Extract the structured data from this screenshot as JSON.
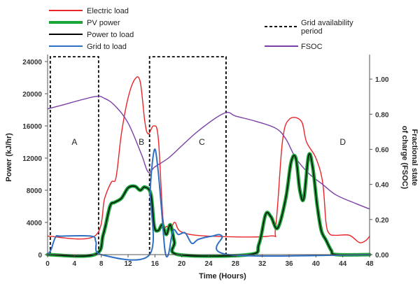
{
  "chart_data": {
    "type": "line",
    "xlabel": "Time (Hours)",
    "ylabel_left": "Power (kJ/hr)",
    "ylabel_right": "Fractional state of charge (FSOC)",
    "xlim": [
      0,
      48
    ],
    "ylim_left": [
      0,
      24000
    ],
    "ylim_right": [
      0,
      1.1
    ],
    "x_ticks": [
      0,
      4,
      8,
      12,
      16,
      20,
      24,
      28,
      32,
      36,
      40,
      44,
      48
    ],
    "y_left_ticks": [
      0,
      4000,
      8000,
      12000,
      16000,
      20000,
      24000
    ],
    "y_right_ticks": [
      "0.00",
      "0.20",
      "0.40",
      "0.60",
      "0.80",
      "1.00"
    ],
    "y_right_values": [
      0,
      0.2,
      0.4,
      0.6,
      0.8,
      1.0
    ],
    "grid": false,
    "legend": [
      {
        "label": "Electric load",
        "color": "#e8262a",
        "style": "solid"
      },
      {
        "label": "PV power",
        "color": "#1aa538",
        "style": "thick"
      },
      {
        "label": "Power to load",
        "color": "#000000",
        "style": "solid"
      },
      {
        "label": "Grid to load",
        "color": "#2e6fc4",
        "style": "solid"
      },
      {
        "label": "Grid availability period",
        "color": "#000000",
        "style": "dashed"
      },
      {
        "label": "FSOC",
        "color": "#7b3fa6",
        "style": "solid"
      }
    ],
    "region_labels": [
      {
        "text": "A",
        "x": 4,
        "y": 14000
      },
      {
        "text": "B",
        "x": 14,
        "y": 14000
      },
      {
        "text": "C",
        "x": 23,
        "y": 14000
      },
      {
        "text": "D",
        "x": 44,
        "y": 14000
      }
    ],
    "grid_availability_periods": [
      {
        "start": 0.4,
        "end": 7.6,
        "level": 24600
      },
      {
        "start": 15.2,
        "end": 26.6,
        "level": 24600
      }
    ],
    "series": [
      {
        "name": "Electric load",
        "axis": "left",
        "color": "#e8262a",
        "width": 1.4,
        "points": [
          [
            0,
            2300
          ],
          [
            7,
            2300
          ],
          [
            8.5,
            7000
          ],
          [
            9.5,
            9000
          ],
          [
            10.2,
            9600
          ],
          [
            11,
            15000
          ],
          [
            12,
            19500
          ],
          [
            13,
            21800
          ],
          [
            13.8,
            21500
          ],
          [
            14.5,
            16500
          ],
          [
            15,
            15000
          ],
          [
            15.8,
            16000
          ],
          [
            16.5,
            14500
          ],
          [
            17.2,
            4500
          ],
          [
            17.8,
            3500
          ],
          [
            18.5,
            3500
          ],
          [
            19,
            4000
          ],
          [
            20,
            2800
          ],
          [
            24,
            2300
          ],
          [
            33,
            2300
          ],
          [
            34,
            3500
          ],
          [
            35,
            14000
          ],
          [
            36,
            16800
          ],
          [
            37.8,
            16600
          ],
          [
            38.6,
            14000
          ],
          [
            40,
            12000
          ],
          [
            41,
            9000
          ],
          [
            41.5,
            4000
          ],
          [
            42,
            2600
          ],
          [
            43,
            2400
          ],
          [
            45,
            2400
          ],
          [
            46.5,
            1500
          ],
          [
            47.5,
            1800
          ],
          [
            48,
            2300
          ]
        ]
      },
      {
        "name": "PV power",
        "axis": "left",
        "color": "#1aa538",
        "width": 5,
        "points": [
          [
            0,
            0
          ],
          [
            7,
            0
          ],
          [
            8.3,
            2500
          ],
          [
            9.3,
            6000
          ],
          [
            10,
            6500
          ],
          [
            11,
            7000
          ],
          [
            12,
            8300
          ],
          [
            13,
            8500
          ],
          [
            13.8,
            8000
          ],
          [
            14.5,
            8400
          ],
          [
            15.4,
            7500
          ],
          [
            15.9,
            3500
          ],
          [
            16.5,
            3000
          ],
          [
            17.1,
            3700
          ],
          [
            17.7,
            2500
          ],
          [
            18.3,
            3700
          ],
          [
            18.9,
            1600
          ],
          [
            19.5,
            0
          ],
          [
            30,
            0
          ],
          [
            31.5,
            1300
          ],
          [
            32.5,
            5000
          ],
          [
            33.3,
            4700
          ],
          [
            34.3,
            3300
          ],
          [
            35.5,
            7000
          ],
          [
            36.3,
            11500
          ],
          [
            37,
            12000
          ],
          [
            37.6,
            8000
          ],
          [
            38.2,
            7000
          ],
          [
            38.9,
            12300
          ],
          [
            39.5,
            11000
          ],
          [
            40.2,
            6000
          ],
          [
            40.8,
            3000
          ],
          [
            41.5,
            1800
          ],
          [
            42.3,
            500
          ],
          [
            43,
            0
          ],
          [
            48,
            0
          ]
        ]
      },
      {
        "name": "Power to load",
        "axis": "left",
        "color": "#000000",
        "width": 1.4,
        "points": [
          [
            0,
            0
          ],
          [
            7,
            0
          ],
          [
            8.3,
            2500
          ],
          [
            9.3,
            6000
          ],
          [
            10,
            6500
          ],
          [
            11,
            7000
          ],
          [
            12,
            8300
          ],
          [
            13,
            8500
          ],
          [
            13.8,
            8000
          ],
          [
            14.5,
            8400
          ],
          [
            15.4,
            7500
          ],
          [
            15.9,
            3500
          ],
          [
            16.5,
            3000
          ],
          [
            17.1,
            3700
          ],
          [
            17.7,
            2500
          ],
          [
            18.3,
            3700
          ],
          [
            18.9,
            1600
          ],
          [
            19.5,
            0
          ],
          [
            30,
            0
          ],
          [
            31.5,
            1300
          ],
          [
            32.5,
            5000
          ],
          [
            33.3,
            4700
          ],
          [
            34.3,
            3300
          ],
          [
            35.5,
            7000
          ],
          [
            36.3,
            11500
          ],
          [
            37,
            12000
          ],
          [
            37.6,
            8000
          ],
          [
            38.2,
            7000
          ],
          [
            38.9,
            12300
          ],
          [
            39.5,
            11000
          ],
          [
            40.2,
            6000
          ],
          [
            40.8,
            3000
          ],
          [
            41.5,
            1800
          ],
          [
            42.3,
            500
          ],
          [
            43,
            0
          ],
          [
            48,
            0
          ]
        ]
      },
      {
        "name": "Grid to load",
        "axis": "left",
        "color": "#2e6fc4",
        "width": 2,
        "points": [
          [
            0,
            0
          ],
          [
            0.5,
            600
          ],
          [
            1.2,
            2200
          ],
          [
            2,
            2300
          ],
          [
            6.5,
            2300
          ],
          [
            7.2,
            1600
          ],
          [
            8,
            0
          ],
          [
            15.2,
            0
          ],
          [
            15.3,
            8000
          ],
          [
            15.9,
            13000
          ],
          [
            16.4,
            11000
          ],
          [
            17,
            5500
          ],
          [
            17.5,
            500
          ],
          [
            18,
            0
          ],
          [
            18.7,
            3000
          ],
          [
            19.5,
            2500
          ],
          [
            20.5,
            2700
          ],
          [
            21.5,
            1400
          ],
          [
            22.5,
            1900
          ],
          [
            24.5,
            2300
          ],
          [
            26,
            2300
          ],
          [
            27,
            0
          ],
          [
            48,
            0
          ]
        ]
      },
      {
        "name": "FSOC",
        "axis": "right",
        "color": "#7b3fa6",
        "width": 1.4,
        "points": [
          [
            0,
            0.83
          ],
          [
            2,
            0.85
          ],
          [
            7,
            0.9
          ],
          [
            8.5,
            0.89
          ],
          [
            10,
            0.85
          ],
          [
            12,
            0.75
          ],
          [
            14,
            0.57
          ],
          [
            15,
            0.47
          ],
          [
            16,
            0.5
          ],
          [
            18,
            0.55
          ],
          [
            20,
            0.62
          ],
          [
            22,
            0.69
          ],
          [
            24,
            0.75
          ],
          [
            26,
            0.8
          ],
          [
            27,
            0.81
          ],
          [
            28,
            0.79
          ],
          [
            31,
            0.76
          ],
          [
            34,
            0.72
          ],
          [
            35.5,
            0.66
          ],
          [
            37,
            0.55
          ],
          [
            39,
            0.46
          ],
          [
            41,
            0.4
          ],
          [
            43,
            0.34
          ],
          [
            46,
            0.29
          ],
          [
            48,
            0.26
          ]
        ]
      }
    ]
  }
}
